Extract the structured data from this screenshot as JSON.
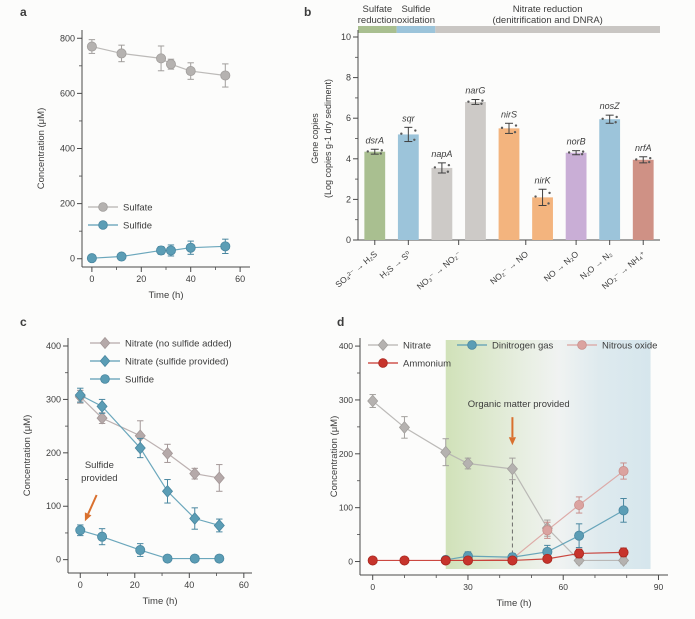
{
  "figure": {
    "background": "#fcfcfb",
    "accent_arrow_color": "#d9702e",
    "axis_color": "#4a4a4a",
    "panels": [
      {
        "id": "a",
        "label": "a"
      },
      {
        "id": "b",
        "label": "b"
      },
      {
        "id": "c",
        "label": "c"
      },
      {
        "id": "d",
        "label": "d"
      }
    ]
  },
  "chart_data": [
    {
      "id": "a",
      "type": "line",
      "xlabel": "Time (h)",
      "ylabel": "Concentration (μM)",
      "xlim": [
        -4,
        64
      ],
      "ylim": [
        -30,
        830
      ],
      "xticks": [
        0,
        20,
        40,
        60
      ],
      "xminor": [
        10,
        30,
        50
      ],
      "yticks": [
        0,
        200,
        400,
        600,
        800
      ],
      "yminor": [
        100,
        300,
        500,
        700
      ],
      "grid": false,
      "legend_position": "inside-mid-left",
      "series": [
        {
          "name": "Sulfate",
          "marker": "circle",
          "color": "#b5b2b0",
          "stroke": "#a19e9c",
          "points": [
            [
              0,
              770,
              25
            ],
            [
              12,
              745,
              30
            ],
            [
              28,
              727,
              45
            ],
            [
              32,
              706,
              18
            ],
            [
              40,
              681,
              30
            ],
            [
              54,
              665,
              42
            ]
          ]
        },
        {
          "name": "Sulfide",
          "marker": "circle",
          "color": "#5b9db5",
          "stroke": "#4a87a0",
          "points": [
            [
              0,
              2,
              10
            ],
            [
              12,
              8,
              10
            ],
            [
              28,
              30,
              14
            ],
            [
              32,
              30,
              20
            ],
            [
              40,
              40,
              24
            ],
            [
              54,
              45,
              26
            ]
          ]
        }
      ]
    },
    {
      "id": "b",
      "type": "bar",
      "ylabel_lines": [
        "Gene copies",
        "(Log copies g-1 dry sediment)"
      ],
      "ylim": [
        0,
        10
      ],
      "yticks": [
        0,
        2,
        4,
        6,
        8,
        10
      ],
      "yminor": [
        1,
        3,
        5,
        7,
        9
      ],
      "grid": false,
      "header_segments": [
        {
          "lines": [
            "Sulfate",
            "reduction"
          ],
          "color": "#a9bf90",
          "span": [
            0,
            0.128
          ]
        },
        {
          "lines": [
            "Sulfide",
            "oxidation"
          ],
          "color": "#9cc4da",
          "span": [
            0.128,
            0.256
          ]
        },
        {
          "lines": [
            "Nitrate reduction",
            "(denitrification and DNRA)"
          ],
          "color": "#c9c6c3",
          "span": [
            0.256,
            1
          ]
        }
      ],
      "categories": [
        "SO₄²⁻ → H₂S",
        "H₂S → S⁰",
        "NO₃⁻ → NO₂⁻",
        "NO₂⁻ → NO",
        "NO → N₂O",
        "N₂O → N₂",
        "NO₂⁻ → NH₄⁺"
      ],
      "bars": [
        {
          "gene": "dsrA",
          "value": 4.35,
          "err": 0.12,
          "color": "#a9bf90",
          "cat": 0
        },
        {
          "gene": "sqr",
          "value": 5.2,
          "err": 0.35,
          "color": "#9cc4da",
          "cat": 1
        },
        {
          "gene": "napA",
          "value": 3.55,
          "err": 0.25,
          "color": "#cdcac7",
          "cat": 2
        },
        {
          "gene": "narG",
          "value": 6.8,
          "err": 0.12,
          "color": "#cdcac7",
          "cat": 2
        },
        {
          "gene": "nirS",
          "value": 5.5,
          "err": 0.25,
          "color": "#f3b47e",
          "cat": 3
        },
        {
          "gene": "nirK",
          "value": 2.1,
          "err": 0.4,
          "color": "#f3b47e",
          "cat": 3
        },
        {
          "gene": "norB",
          "value": 4.3,
          "err": 0.1,
          "color": "#c9aed6",
          "cat": 4
        },
        {
          "gene": "nosZ",
          "value": 5.95,
          "err": 0.2,
          "color": "#9cc4da",
          "cat": 5
        },
        {
          "gene": "nrfA",
          "value": 3.95,
          "err": 0.15,
          "color": "#cf9185",
          "cat": 6
        }
      ]
    },
    {
      "id": "c",
      "type": "line",
      "xlabel": "Time (h)",
      "ylabel": "Concentration (μM)",
      "xlim": [
        -4.5,
        63
      ],
      "ylim": [
        -25,
        415
      ],
      "xticks": [
        0,
        20,
        40,
        60
      ],
      "xminor": [
        10,
        30,
        50
      ],
      "yticks": [
        0,
        100,
        200,
        300,
        400
      ],
      "yminor": [
        50,
        150,
        250,
        350
      ],
      "grid": false,
      "legend_position": "inside-top-left",
      "series": [
        {
          "name": "Nitrate (no sulfide added)",
          "marker": "diamond",
          "color": "#b5a9a9",
          "stroke": "#a39797",
          "points": [
            [
              0,
              305,
              12
            ],
            [
              8,
              265,
              10
            ],
            [
              22,
              232,
              28
            ],
            [
              32,
              199,
              17
            ],
            [
              42,
              161,
              10
            ],
            [
              51,
              153,
              25
            ]
          ]
        },
        {
          "name": "Nitrate (sulfide provided)",
          "marker": "diamond",
          "color": "#5b9db5",
          "stroke": "#4a87a0",
          "points": [
            [
              0,
              308,
              13
            ],
            [
              8,
              287,
              13
            ],
            [
              22,
              209,
              18
            ],
            [
              32,
              128,
              22
            ],
            [
              42,
              77,
              20
            ],
            [
              51,
              64,
              12
            ]
          ]
        },
        {
          "name": "Sulfide",
          "marker": "circle",
          "color": "#5b9db5",
          "stroke": "#4a87a0",
          "points": [
            [
              0,
              55,
              10
            ],
            [
              8,
              43,
              15
            ],
            [
              22,
              18,
              12
            ],
            [
              32,
              2,
              4
            ],
            [
              42,
              2,
              4
            ],
            [
              51,
              2,
              4
            ]
          ]
        }
      ],
      "annotations": [
        {
          "lines": [
            "Sulfide",
            "provided"
          ],
          "x": 7,
          "y": 172,
          "color": "#3c3c3c"
        }
      ],
      "arrows": [
        {
          "from": [
            6,
            121
          ],
          "to": [
            1.7,
            72
          ],
          "color": "#d9702e"
        }
      ]
    },
    {
      "id": "d",
      "type": "line",
      "xlabel": "Time (h)",
      "ylabel": "Concentration (μM)",
      "xlim": [
        -4,
        93
      ],
      "ylim": [
        -25,
        415
      ],
      "xticks": [
        0,
        30,
        60,
        90
      ],
      "xminor": [
        10,
        20,
        40,
        50,
        70,
        80
      ],
      "yticks": [
        0,
        100,
        200,
        300,
        400
      ],
      "yminor": [
        50,
        150,
        250,
        350
      ],
      "grid": false,
      "legend_position": "inside-top",
      "shade": {
        "x1": 23,
        "x2": 87.5,
        "stops": [
          [
            "0%",
            "#c9ddad"
          ],
          [
            "38%",
            "#e4ecdd"
          ],
          [
            "55%",
            "#eef1f0"
          ],
          [
            "75%",
            "#d9e7ec"
          ],
          [
            "100%",
            "#cfe2ea"
          ]
        ],
        "opacity": 0.85
      },
      "dashed_line": {
        "x": 44,
        "y1": 0,
        "y2": 158
      },
      "series": [
        {
          "name": "Nitrate",
          "marker": "diamond",
          "color": "#b5b2b0",
          "stroke": "#a3a09d",
          "points": [
            [
              0,
              298,
              12
            ],
            [
              10,
              249,
              20
            ],
            [
              23,
              203,
              25
            ],
            [
              30,
              182,
              10
            ],
            [
              44,
              172,
              20
            ],
            [
              55,
              62,
              15
            ],
            [
              65,
              2,
              6
            ],
            [
              79,
              2,
              6
            ]
          ]
        },
        {
          "name": "Ammonium",
          "marker": "circle",
          "color": "#c7342c",
          "stroke": "#a82820",
          "points": [
            [
              0,
              2,
              4
            ],
            [
              10,
              2,
              4
            ],
            [
              23,
              2,
              4
            ],
            [
              30,
              2,
              4
            ],
            [
              44,
              2,
              4
            ],
            [
              55,
              5,
              5
            ],
            [
              65,
              15,
              8
            ],
            [
              79,
              17,
              8
            ]
          ]
        },
        {
          "name": "Dinitrogen gas",
          "marker": "circle",
          "color": "#5b9db5",
          "stroke": "#4a87a0",
          "points": [
            [
              23,
              3,
              5
            ],
            [
              30,
              10,
              8
            ],
            [
              44,
              8,
              7
            ],
            [
              55,
              18,
              12
            ],
            [
              65,
              48,
              22
            ],
            [
              79,
              95,
              22
            ]
          ]
        },
        {
          "name": "Nitrous oxide",
          "marker": "circle",
          "color": "#dba3a0",
          "stroke": "#c98f8c",
          "points": [
            [
              23,
              2,
              4
            ],
            [
              30,
              2,
              4
            ],
            [
              44,
              5,
              5
            ],
            [
              55,
              58,
              15
            ],
            [
              65,
              105,
              15
            ],
            [
              79,
              168,
              15
            ]
          ]
        }
      ],
      "annotations": [
        {
          "lines": [
            "Organic matter provided"
          ],
          "x": 46,
          "y": 287,
          "color": "#3c3c3c"
        }
      ],
      "arrows": [
        {
          "from": [
            44,
            268
          ],
          "to": [
            44,
            216
          ],
          "color": "#d9702e"
        }
      ]
    }
  ]
}
